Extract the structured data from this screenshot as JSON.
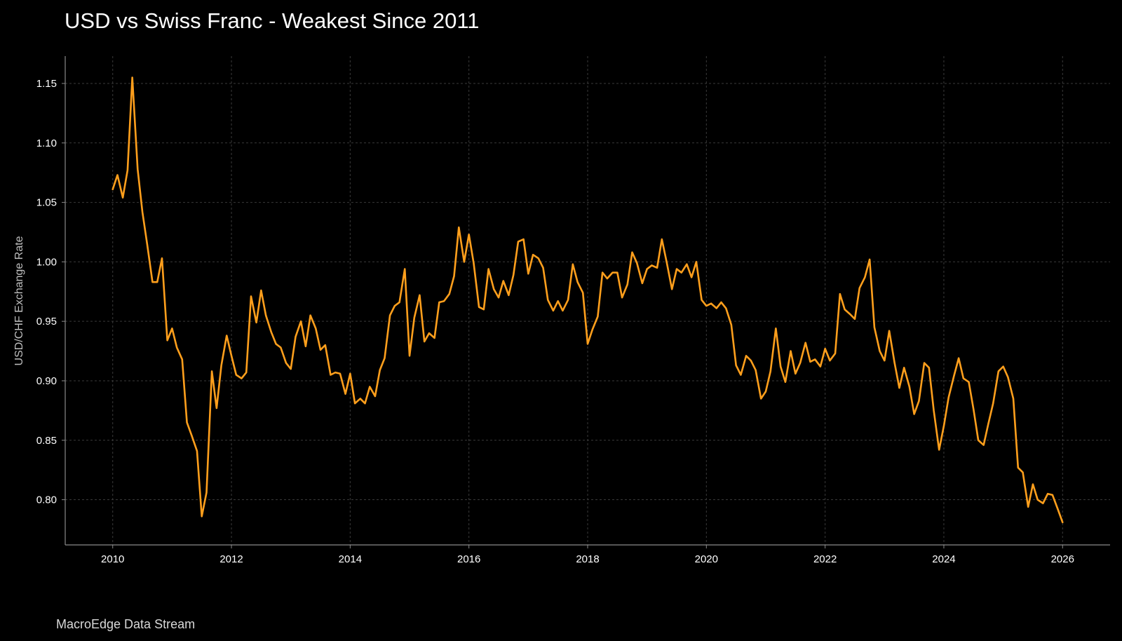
{
  "title": "USD vs Swiss Franc - Weakest Since 2011",
  "source_label": "MacroEdge Data Stream",
  "colors": {
    "background": "#000000",
    "line": "#FF9F1C",
    "grid": "#3a3a3a",
    "axis": "#8a8a8a",
    "text": "#ffffff"
  },
  "chart_data": {
    "type": "line",
    "title": "USD vs Swiss Franc - Weakest Since 2011",
    "xlabel": "",
    "ylabel": "USD/CHF Exchange Rate",
    "xlim": [
      2009.2,
      2026.8
    ],
    "ylim": [
      0.762,
      1.173
    ],
    "grid": true,
    "x_ticks": [
      2010,
      2012,
      2014,
      2016,
      2018,
      2020,
      2022,
      2024,
      2026
    ],
    "x_tick_labels": [
      "2010",
      "2012",
      "2014",
      "2016",
      "2018",
      "2020",
      "2022",
      "2024",
      "2026"
    ],
    "y_ticks": [
      0.8,
      0.85,
      0.9,
      0.95,
      1.0,
      1.05,
      1.1,
      1.15
    ],
    "y_tick_labels": [
      "0.80",
      "0.85",
      "0.90",
      "0.95",
      "1.00",
      "1.05",
      "1.10",
      "1.15"
    ],
    "series": [
      {
        "x": [
          2010.0,
          2010.08,
          2010.17,
          2010.25,
          2010.33,
          2010.42,
          2010.5,
          2010.58,
          2010.67,
          2010.75,
          2010.83,
          2010.92,
          2011.0,
          2011.08,
          2011.17,
          2011.25,
          2011.33,
          2011.42,
          2011.5,
          2011.58,
          2011.67,
          2011.75,
          2011.83,
          2011.92,
          2012.0,
          2012.08,
          2012.17,
          2012.25,
          2012.33,
          2012.42,
          2012.5,
          2012.58,
          2012.67,
          2012.75,
          2012.83,
          2012.92,
          2013.0,
          2013.08,
          2013.17,
          2013.25,
          2013.33,
          2013.42,
          2013.5,
          2013.58,
          2013.67,
          2013.75,
          2013.83,
          2013.92,
          2014.0,
          2014.08,
          2014.17,
          2014.25,
          2014.33,
          2014.42,
          2014.5,
          2014.58,
          2014.67,
          2014.75,
          2014.83,
          2014.92,
          2015.0,
          2015.08,
          2015.17,
          2015.25,
          2015.33,
          2015.42,
          2015.5,
          2015.58,
          2015.67,
          2015.75,
          2015.83,
          2015.92,
          2016.0,
          2016.08,
          2016.17,
          2016.25,
          2016.33,
          2016.42,
          2016.5,
          2016.58,
          2016.67,
          2016.75,
          2016.83,
          2016.92,
          2017.0,
          2017.08,
          2017.17,
          2017.25,
          2017.33,
          2017.42,
          2017.5,
          2017.58,
          2017.67,
          2017.75,
          2017.83,
          2017.92,
          2018.0,
          2018.08,
          2018.17,
          2018.25,
          2018.33,
          2018.42,
          2018.5,
          2018.58,
          2018.67,
          2018.75,
          2018.83,
          2018.92,
          2019.0,
          2019.08,
          2019.17,
          2019.25,
          2019.33,
          2019.42,
          2019.5,
          2019.58,
          2019.67,
          2019.75,
          2019.83,
          2019.92,
          2020.0,
          2020.08,
          2020.17,
          2020.25,
          2020.33,
          2020.42,
          2020.5,
          2020.58,
          2020.67,
          2020.75,
          2020.83,
          2020.92,
          2021.0,
          2021.08,
          2021.17,
          2021.25,
          2021.33,
          2021.42,
          2021.5,
          2021.58,
          2021.67,
          2021.75,
          2021.83,
          2021.92,
          2022.0,
          2022.08,
          2022.17,
          2022.25,
          2022.33,
          2022.42,
          2022.5,
          2022.58,
          2022.67,
          2022.75,
          2022.83,
          2022.92,
          2023.0,
          2023.08,
          2023.17,
          2023.25,
          2023.33,
          2023.42,
          2023.5,
          2023.58,
          2023.67,
          2023.75,
          2023.83,
          2023.92,
          2024.0,
          2024.08,
          2024.17,
          2024.25,
          2024.33,
          2024.42,
          2024.5,
          2024.58,
          2024.67,
          2024.75,
          2024.83,
          2024.92,
          2025.0,
          2025.08,
          2025.17,
          2025.25,
          2025.33,
          2025.42,
          2025.5,
          2025.58,
          2025.67,
          2025.75,
          2025.83,
          2025.92,
          2026.0
        ],
        "y": [
          1.061,
          1.073,
          1.054,
          1.077,
          1.155,
          1.078,
          1.042,
          1.015,
          0.983,
          0.983,
          1.003,
          0.934,
          0.944,
          0.928,
          0.918,
          0.865,
          0.854,
          0.841,
          0.786,
          0.806,
          0.908,
          0.877,
          0.913,
          0.938,
          0.921,
          0.905,
          0.902,
          0.907,
          0.971,
          0.949,
          0.976,
          0.955,
          0.941,
          0.931,
          0.928,
          0.915,
          0.91,
          0.937,
          0.95,
          0.929,
          0.955,
          0.944,
          0.926,
          0.93,
          0.905,
          0.907,
          0.906,
          0.889,
          0.906,
          0.881,
          0.885,
          0.881,
          0.895,
          0.887,
          0.909,
          0.919,
          0.955,
          0.963,
          0.966,
          0.994,
          0.921,
          0.953,
          0.972,
          0.933,
          0.94,
          0.936,
          0.966,
          0.967,
          0.973,
          0.988,
          1.029,
          1.0,
          1.023,
          0.999,
          0.962,
          0.96,
          0.994,
          0.977,
          0.97,
          0.984,
          0.972,
          0.989,
          1.017,
          1.019,
          0.99,
          1.006,
          1.003,
          0.995,
          0.968,
          0.959,
          0.967,
          0.959,
          0.968,
          0.998,
          0.983,
          0.974,
          0.931,
          0.943,
          0.954,
          0.991,
          0.986,
          0.991,
          0.991,
          0.97,
          0.981,
          1.008,
          0.999,
          0.982,
          0.994,
          0.997,
          0.995,
          1.019,
          1.0,
          0.977,
          0.994,
          0.991,
          0.998,
          0.987,
          1.0,
          0.968,
          0.963,
          0.965,
          0.961,
          0.966,
          0.961,
          0.947,
          0.913,
          0.905,
          0.921,
          0.917,
          0.909,
          0.885,
          0.891,
          0.908,
          0.944,
          0.912,
          0.899,
          0.925,
          0.906,
          0.915,
          0.932,
          0.916,
          0.918,
          0.912,
          0.927,
          0.917,
          0.923,
          0.973,
          0.96,
          0.956,
          0.952,
          0.978,
          0.987,
          1.002,
          0.945,
          0.925,
          0.917,
          0.942,
          0.915,
          0.894,
          0.911,
          0.895,
          0.872,
          0.883,
          0.915,
          0.911,
          0.875,
          0.842,
          0.862,
          0.886,
          0.904,
          0.919,
          0.902,
          0.899,
          0.876,
          0.85,
          0.846,
          0.864,
          0.881,
          0.908,
          0.912,
          0.903,
          0.885,
          0.827,
          0.823,
          0.794,
          0.813,
          0.8,
          0.797,
          0.805,
          0.804,
          0.792,
          0.781
        ]
      }
    ]
  }
}
